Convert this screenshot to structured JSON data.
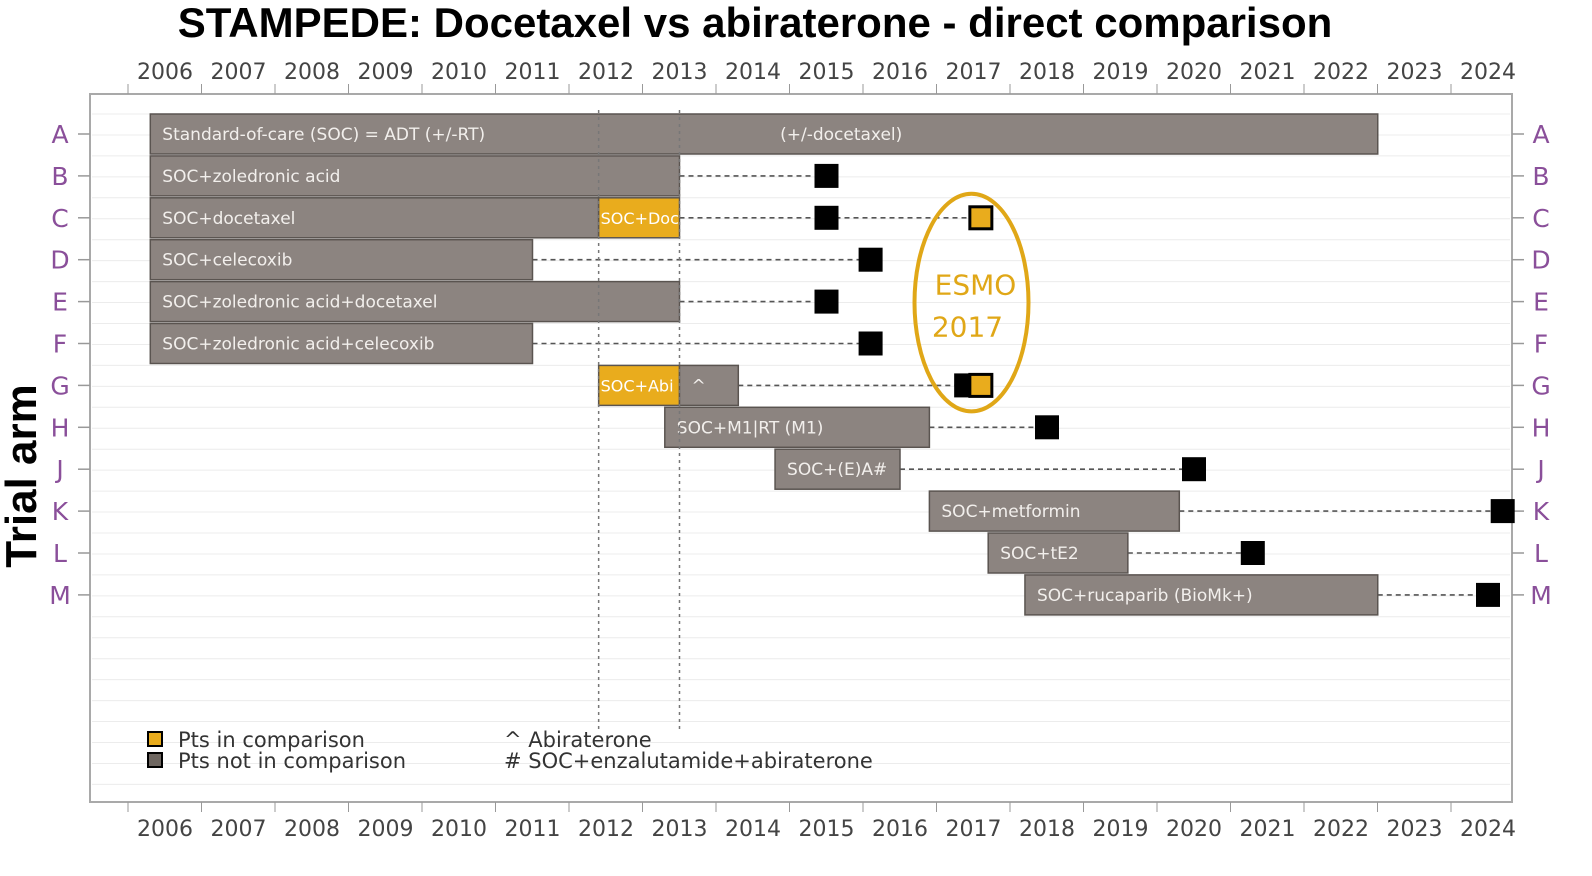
{
  "title": "STAMPEDE: Docetaxel vs abiraterone - direct comparison",
  "ylabel": "Trial arm",
  "colors": {
    "bar": "#8c8480",
    "bar_border": "#5a5450",
    "highlight": "#e9ac1d",
    "marker": "#000000",
    "row_label": "#8a4f9a",
    "esmo": "#e0a717"
  },
  "chart_data": {
    "type": "timeline",
    "title": "STAMPEDE: Docetaxel vs abiraterone - direct comparison",
    "ylabel": "Trial arm",
    "years": [
      "2006",
      "2007",
      "2008",
      "2009",
      "2010",
      "2011",
      "2012",
      "2013",
      "2014",
      "2015",
      "2016",
      "2017",
      "2018",
      "2019",
      "2020",
      "2021",
      "2022",
      "2023",
      "2024"
    ],
    "xlim": [
      2005.5,
      2024.9
    ],
    "rows": [
      "A",
      "B",
      "C",
      "D",
      "E",
      "F",
      "G",
      "H",
      "J",
      "K",
      "L",
      "M"
    ],
    "bars": [
      {
        "row": "A",
        "start": 2005.8,
        "end": 2022.5,
        "label": "Standard-of-care (SOC) = ADT (+/-RT)",
        "kind": "grey"
      },
      {
        "row": "B",
        "start": 2005.8,
        "end": 2013.0,
        "label": "SOC+zoledronic acid",
        "kind": "grey"
      },
      {
        "row": "C",
        "start": 2005.8,
        "end": 2011.9,
        "label": "SOC+docetaxel",
        "kind": "grey"
      },
      {
        "row": "C",
        "start": 2011.9,
        "end": 2013.0,
        "label": "SOC+Doc",
        "kind": "highlight"
      },
      {
        "row": "D",
        "start": 2005.8,
        "end": 2011.0,
        "label": "SOC+celecoxib",
        "kind": "grey"
      },
      {
        "row": "E",
        "start": 2005.8,
        "end": 2013.0,
        "label": "SOC+zoledronic acid+docetaxel",
        "kind": "grey"
      },
      {
        "row": "F",
        "start": 2005.8,
        "end": 2011.0,
        "label": "SOC+zoledronic acid+celecoxib",
        "kind": "grey"
      },
      {
        "row": "G",
        "start": 2011.9,
        "end": 2013.0,
        "label": "SOC+Abi",
        "kind": "highlight"
      },
      {
        "row": "G",
        "start": 2013.0,
        "end": 2013.8,
        "label": "^",
        "kind": "grey"
      },
      {
        "row": "H",
        "start": 2012.8,
        "end": 2016.4,
        "label": "SOC+M1|RT (M1)",
        "kind": "grey"
      },
      {
        "row": "J",
        "start": 2014.3,
        "end": 2016.0,
        "label": "SOC+(E)A#",
        "kind": "grey"
      },
      {
        "row": "K",
        "start": 2016.4,
        "end": 2019.8,
        "label": "SOC+metformin",
        "kind": "grey"
      },
      {
        "row": "L",
        "start": 2017.2,
        "end": 2019.1,
        "label": "SOC+tE2",
        "kind": "grey"
      },
      {
        "row": "M",
        "start": 2017.7,
        "end": 2022.5,
        "label": "SOC+rucaparib (BioMk+)",
        "kind": "grey"
      }
    ],
    "markers": [
      {
        "row": "B",
        "from": 2013.0,
        "x": 2015.0,
        "kind": "black"
      },
      {
        "row": "C",
        "from": 2013.0,
        "x": 2015.0,
        "kind": "black"
      },
      {
        "row": "C",
        "from": 2015.0,
        "x": 2017.1,
        "kind": "highlight"
      },
      {
        "row": "D",
        "from": 2011.0,
        "x": 2015.6,
        "kind": "black"
      },
      {
        "row": "E",
        "from": 2013.0,
        "x": 2015.0,
        "kind": "black"
      },
      {
        "row": "F",
        "from": 2011.0,
        "x": 2015.6,
        "kind": "black"
      },
      {
        "row": "G",
        "from": 2013.8,
        "x": 2016.9,
        "kind": "black"
      },
      {
        "row": "G",
        "from": 2016.9,
        "x": 2017.1,
        "kind": "highlight"
      },
      {
        "row": "H",
        "from": 2016.4,
        "x": 2018.0,
        "kind": "black"
      },
      {
        "row": "J",
        "from": 2016.0,
        "x": 2020.0,
        "kind": "black"
      },
      {
        "row": "K",
        "from": 2019.8,
        "x": 2024.2,
        "kind": "black"
      },
      {
        "row": "L",
        "from": 2019.1,
        "x": 2020.8,
        "kind": "black"
      },
      {
        "row": "M",
        "from": 2022.5,
        "x": 2024.0,
        "kind": "black"
      }
    ],
    "vlines": [
      2011.9,
      2013.0
    ],
    "annotation": {
      "lines": [
        "ESMO",
        "2017"
      ],
      "x": 2017.0,
      "rows": [
        "C",
        "G"
      ]
    },
    "legend": [
      {
        "kind": "highlight",
        "label": "Pts in comparison"
      },
      {
        "kind": "grey",
        "label": "Pts not in comparison"
      }
    ],
    "footnotes": [
      "^ Abiraterone",
      "# SOC+enzalutamide+abiraterone"
    ],
    "legend_position": "bottom-left"
  }
}
